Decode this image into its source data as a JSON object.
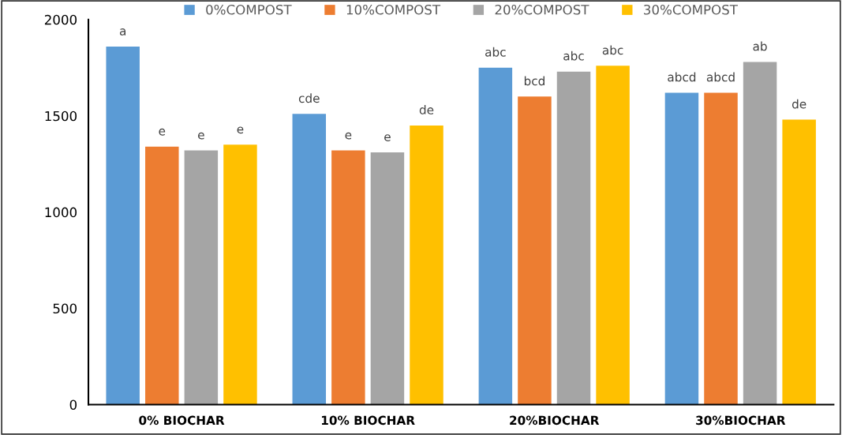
{
  "chart_data": {
    "type": "bar",
    "categories": [
      "0% BIOCHAR",
      "10% BIOCHAR",
      "20%BIOCHAR",
      "30%BIOCHAR"
    ],
    "series": [
      {
        "name": "0%COMPOST",
        "color": "#5b9bd5",
        "values": [
          1860,
          1510,
          1750,
          1620
        ],
        "value_labels": [
          "a",
          "cde",
          "abc",
          "abcd"
        ]
      },
      {
        "name": "10%COMPOST",
        "color": "#ed7d31",
        "values": [
          1340,
          1320,
          1600,
          1620
        ],
        "value_labels": [
          "e",
          "e",
          "bcd",
          "abcd"
        ]
      },
      {
        "name": "20%COMPOST",
        "color": "#a5a5a5",
        "values": [
          1320,
          1310,
          1730,
          1780
        ],
        "value_labels": [
          "e",
          "e",
          "abc",
          "ab"
        ]
      },
      {
        "name": "30%COMPOST",
        "color": "#ffc000",
        "values": [
          1350,
          1450,
          1760,
          1480
        ],
        "value_labels": [
          "e",
          "de",
          "abc",
          "de"
        ]
      }
    ],
    "ylim": [
      0,
      2000
    ],
    "yticks": [
      0,
      500,
      1000,
      1500,
      2000
    ],
    "grid": false,
    "legend": "top"
  }
}
